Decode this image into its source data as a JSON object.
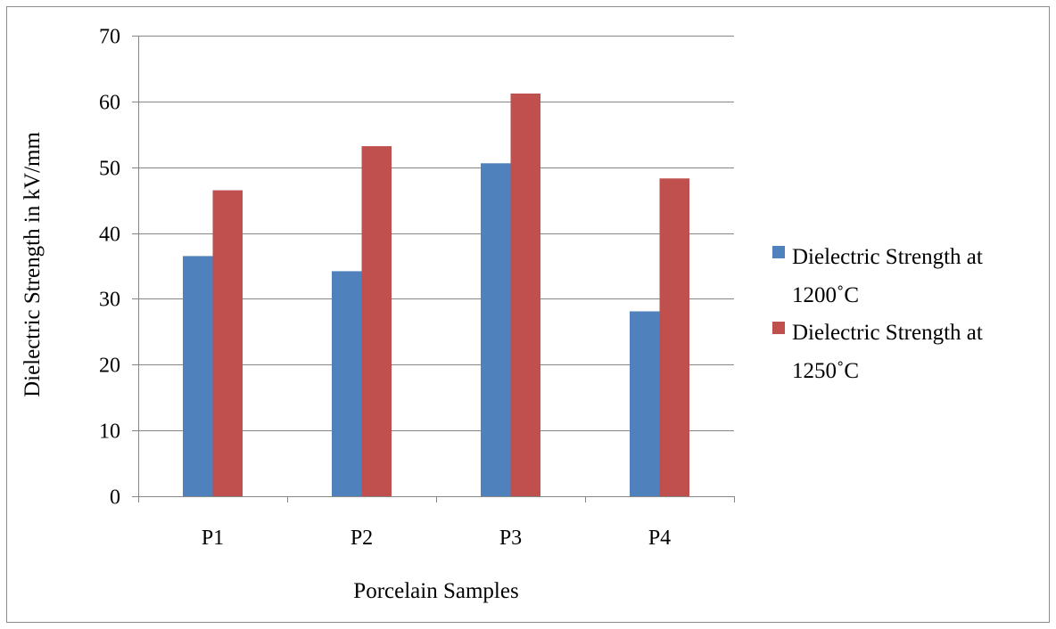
{
  "chart_data": {
    "type": "bar",
    "title": "",
    "xlabel": "Porcelain Samples",
    "ylabel": "Dielectric Strength in kV/mm",
    "categories": [
      "P1",
      "P2",
      "P3",
      "P4"
    ],
    "ylim": [
      0,
      70
    ],
    "yticks": [
      0,
      10,
      20,
      30,
      40,
      50,
      60,
      70
    ],
    "grid": true,
    "legend_position": "right",
    "series": [
      {
        "name": "Dielectric Strength at 1200˚C",
        "legend_lines": [
          "Dielectric Strength at",
          "1200˚C"
        ],
        "color": "#4F81BD",
        "values": [
          36.5,
          34.2,
          50.6,
          28.1
        ]
      },
      {
        "name": "Dielectric Strength at 1250˚C",
        "legend_lines": [
          "Dielectric Strength at",
          "1250˚C"
        ],
        "color": "#C0504D",
        "values": [
          46.5,
          53.2,
          61.2,
          48.3
        ]
      }
    ]
  },
  "colors": {
    "border": "#8c8c8c",
    "gridline": "#868686",
    "axis": "#868686"
  }
}
